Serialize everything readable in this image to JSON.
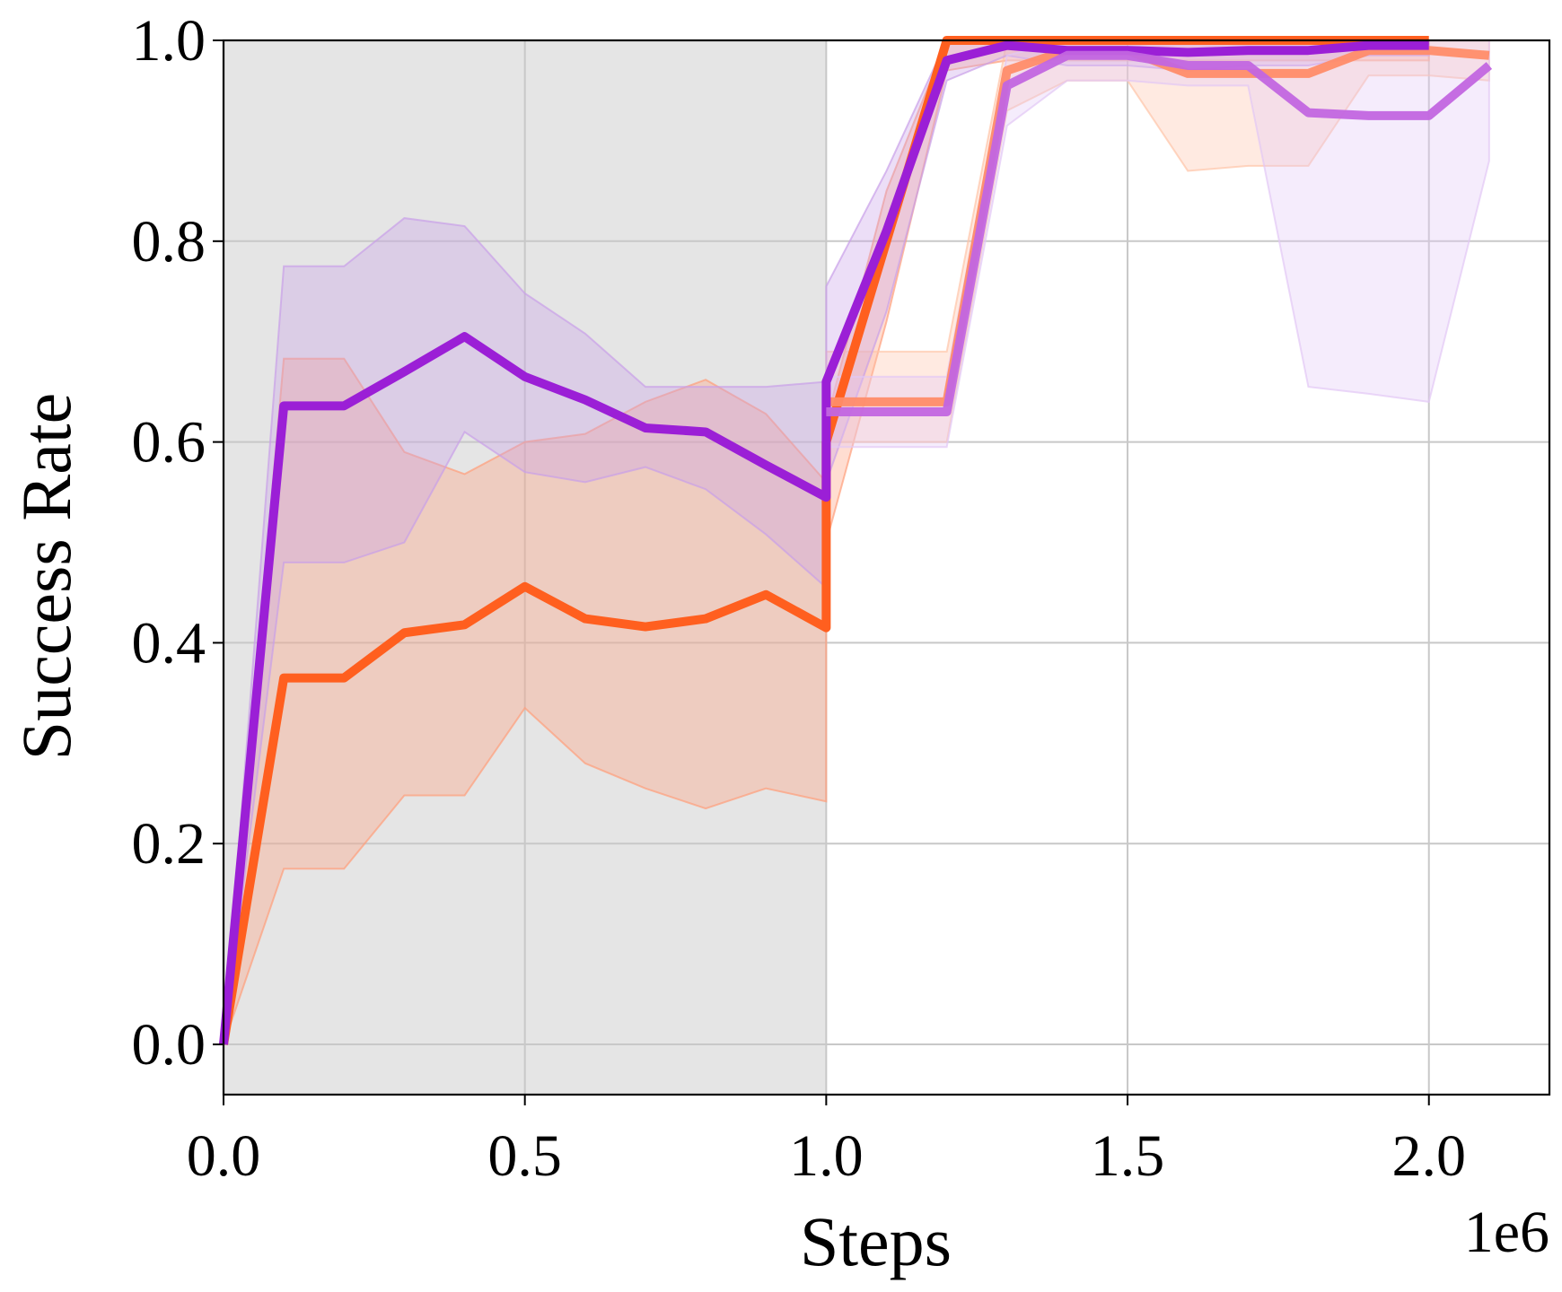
{
  "chart_data": {
    "type": "line",
    "xlabel": "Steps",
    "ylabel": "Success Rate",
    "x_offset_label": "1e6",
    "xlim": [
      0.0,
      2.2
    ],
    "ylim": [
      -0.05,
      1.0
    ],
    "xticks": [
      "0.0",
      "0.5",
      "1.0",
      "1.5",
      "2.0"
    ],
    "yticks": [
      "0.0",
      "0.2",
      "0.4",
      "0.6",
      "0.8",
      "1.0"
    ],
    "grid": true,
    "legend": "none",
    "shaded_region": {
      "x_start": 0.0,
      "x_end": 1.0,
      "color": "#e5e5e5"
    },
    "series": [
      {
        "color": "#ff5f1f",
        "opacity": 1.0,
        "band_color": "#ff9e7a",
        "x": [
          0.0,
          0.1,
          0.2,
          0.3,
          0.4,
          0.5,
          0.6,
          0.7,
          0.8,
          0.9,
          1.0,
          1.0,
          1.1,
          1.2,
          1.3,
          1.4,
          1.5,
          1.6,
          1.7,
          1.8,
          1.9,
          2.0
        ],
        "y": [
          0.0,
          0.365,
          0.365,
          0.41,
          0.418,
          0.456,
          0.424,
          0.416,
          0.424,
          0.448,
          0.415,
          0.6,
          0.8,
          1.0,
          1.0,
          1.0,
          1.0,
          1.0,
          1.0,
          1.0,
          1.0,
          1.0
        ],
        "lower": [
          0.0,
          0.175,
          0.175,
          0.248,
          0.248,
          0.335,
          0.28,
          0.255,
          0.235,
          0.255,
          0.242,
          0.5,
          0.72,
          0.97,
          0.98,
          0.98,
          0.98,
          0.98,
          0.98,
          0.98,
          0.98,
          0.98
        ],
        "upper": [
          0.0,
          0.683,
          0.683,
          0.59,
          0.568,
          0.6,
          0.608,
          0.64,
          0.662,
          0.628,
          0.56,
          0.62,
          0.85,
          1.0,
          1.0,
          1.0,
          1.0,
          1.0,
          1.0,
          1.0,
          1.0,
          1.0
        ]
      },
      {
        "color": "#ff8c69",
        "opacity": 0.95,
        "band_color": "#ffc4a8",
        "x": [
          1.0,
          1.1,
          1.2,
          1.3,
          1.4,
          1.5,
          1.6,
          1.7,
          1.8,
          1.9,
          2.0,
          2.1
        ],
        "y": [
          0.64,
          0.64,
          0.64,
          0.97,
          0.99,
          0.99,
          0.967,
          0.967,
          0.967,
          0.99,
          0.99,
          0.985
        ],
        "lower": [
          0.6,
          0.6,
          0.6,
          0.93,
          0.96,
          0.96,
          0.87,
          0.875,
          0.875,
          0.965,
          0.965,
          0.96
        ],
        "upper": [
          0.69,
          0.69,
          0.69,
          1.0,
          1.0,
          1.0,
          1.0,
          1.0,
          1.0,
          1.0,
          1.0,
          1.0
        ]
      },
      {
        "color": "#9b1fd6",
        "opacity": 1.0,
        "band_color": "#c9a0e8",
        "x": [
          0.0,
          0.1,
          0.2,
          0.3,
          0.4,
          0.5,
          0.6,
          0.7,
          0.8,
          0.9,
          1.0,
          1.0,
          1.1,
          1.2,
          1.3,
          1.4,
          1.5,
          1.6,
          1.7,
          1.8,
          1.9,
          2.0
        ],
        "y": [
          0.0,
          0.636,
          0.636,
          0.67,
          0.705,
          0.665,
          0.642,
          0.614,
          0.61,
          0.577,
          0.545,
          0.66,
          0.81,
          0.98,
          0.995,
          0.99,
          0.99,
          0.988,
          0.99,
          0.99,
          0.995,
          0.995
        ],
        "lower": [
          0.0,
          0.48,
          0.48,
          0.5,
          0.61,
          0.57,
          0.56,
          0.575,
          0.553,
          0.508,
          0.455,
          0.56,
          0.73,
          0.96,
          0.985,
          0.975,
          0.975,
          0.97,
          0.975,
          0.975,
          0.985,
          0.985
        ],
        "upper": [
          0.0,
          0.775,
          0.775,
          0.823,
          0.815,
          0.748,
          0.708,
          0.655,
          0.655,
          0.655,
          0.66,
          0.755,
          0.87,
          1.0,
          1.0,
          1.0,
          1.0,
          1.0,
          1.0,
          1.0,
          1.0,
          1.0
        ]
      },
      {
        "color": "#c266e0",
        "opacity": 0.95,
        "band_color": "#e2c8f5",
        "x": [
          1.0,
          1.1,
          1.2,
          1.3,
          1.4,
          1.5,
          1.6,
          1.7,
          1.8,
          1.9,
          2.0,
          2.1
        ],
        "y": [
          0.63,
          0.63,
          0.63,
          0.955,
          0.985,
          0.985,
          0.975,
          0.975,
          0.928,
          0.925,
          0.925,
          0.975
        ],
        "lower": [
          0.595,
          0.595,
          0.595,
          0.915,
          0.96,
          0.96,
          0.955,
          0.955,
          0.655,
          0.648,
          0.64,
          0.88
        ],
        "upper": [
          0.665,
          0.665,
          0.665,
          0.985,
          1.0,
          1.0,
          1.0,
          1.0,
          1.0,
          1.0,
          1.0,
          1.0
        ]
      }
    ]
  }
}
